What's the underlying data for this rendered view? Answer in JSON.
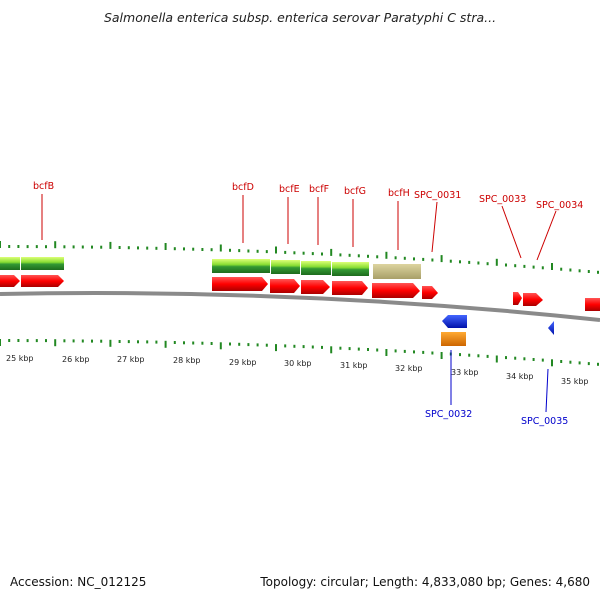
{
  "title": "Salmonella enterica subsp. enterica serovar Paratyphi C stra...",
  "footer": {
    "accession": "Accession: NC_012125",
    "topology": "Topology: circular; Length: 4,833,080 bp; Genes: 4,680"
  },
  "top_genes": [
    {
      "label": "bcfB"
    },
    {
      "label": "bcfD"
    },
    {
      "label": "bcfE"
    },
    {
      "label": "bcfF"
    },
    {
      "label": "bcfG"
    },
    {
      "label": "bcfH"
    },
    {
      "label": "SPC_0031"
    },
    {
      "label": "SPC_0033"
    },
    {
      "label": "SPC_0034"
    }
  ],
  "bottom_genes": [
    {
      "label": "SPC_0032"
    },
    {
      "label": "SPC_0035"
    }
  ],
  "kbp_labels": [
    "25 kbp",
    "26 kbp",
    "27 kbp",
    "28 kbp",
    "29 kbp",
    "30 kbp",
    "31 kbp",
    "32 kbp",
    "33 kbp",
    "34 kbp",
    "35 kbp"
  ],
  "colors": {
    "cds": "#ff0000",
    "cds_dark": "#b00000",
    "rna_green_light": "#aaee44",
    "rna_green_dark": "#228822",
    "tan": "#c8bf88",
    "blue": "#0022dd",
    "orange": "#ff8800",
    "tick": "#228822",
    "backbone": "#888888"
  }
}
